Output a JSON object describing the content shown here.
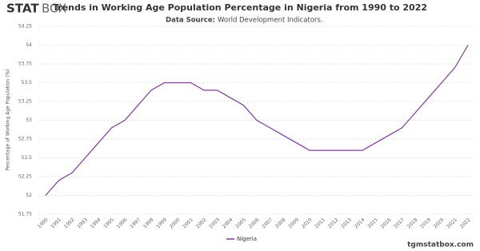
{
  "logo_bold": "STAT",
  "logo_light": "BOX",
  "footer": "tgmstatbox.com",
  "chart_data": {
    "type": "line",
    "title": "Trends in Working Age Population Percentage in Nigeria from 1990 to 2022",
    "source_label": "Data Source:",
    "source": "World Development Indicators.",
    "y_label": "Percentage of Working Age Population (%)",
    "categories": [
      "1990",
      "1991",
      "1992",
      "1993",
      "1994",
      "1995",
      "1996",
      "1997",
      "1998",
      "1999",
      "2000",
      "2001",
      "2002",
      "2003",
      "2004",
      "2005",
      "2006",
      "2007",
      "2008",
      "2009",
      "2010",
      "2011",
      "2012",
      "2013",
      "2014",
      "2015",
      "2016",
      "2017",
      "2018",
      "2019",
      "2020",
      "2021",
      "2022"
    ],
    "series": [
      {
        "name": "Nigeria",
        "color": "#7d3c98",
        "values": [
          52.0,
          52.2,
          52.3,
          52.5,
          52.7,
          52.9,
          53.0,
          53.2,
          53.4,
          53.5,
          53.5,
          53.5,
          53.4,
          53.4,
          53.3,
          53.2,
          53.0,
          52.9,
          52.8,
          52.7,
          52.6,
          52.6,
          52.6,
          52.6,
          52.6,
          52.7,
          52.8,
          52.9,
          53.1,
          53.3,
          53.5,
          53.7,
          54.0
        ]
      }
    ],
    "ylim": [
      51.75,
      54.25
    ],
    "yticks": [
      51.75,
      52,
      52.25,
      52.5,
      52.75,
      53,
      53.25,
      53.5,
      53.75,
      54,
      54.25
    ],
    "grid": true,
    "legend": "bottom"
  }
}
